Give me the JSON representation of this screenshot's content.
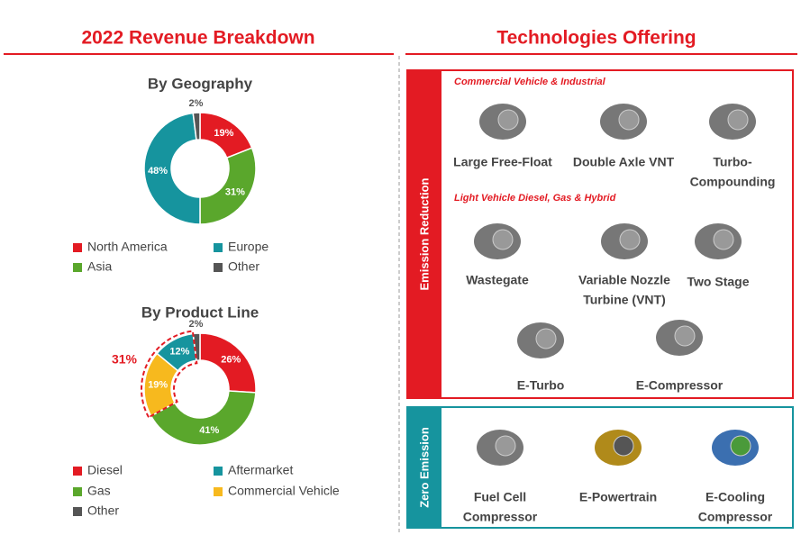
{
  "header": {
    "left_title": "2022 Revenue Breakdown",
    "right_title": "Technologies Offering"
  },
  "chart_data": [
    {
      "type": "donut",
      "title": "By Geography",
      "categories": [
        "North America",
        "Asia",
        "Europe",
        "Other"
      ],
      "values": [
        19,
        31,
        48,
        2
      ],
      "value_labels": [
        "19%",
        "31%",
        "48%",
        "2%"
      ],
      "colors": [
        "#e31b23",
        "#5aa72c",
        "#16949e",
        "#555555"
      ]
    },
    {
      "type": "donut",
      "title": "By Product Line",
      "categories": [
        "Diesel",
        "Gas",
        "Commercial Vehicle",
        "Aftermarket",
        "Other"
      ],
      "values": [
        26,
        41,
        19,
        12,
        2
      ],
      "value_labels": [
        "26%",
        "41%",
        "19%",
        "12%",
        "2%"
      ],
      "colors": [
        "#e31b23",
        "#5aa72c",
        "#f7b91e",
        "#16949e",
        "#555555"
      ],
      "annotation": "31%"
    }
  ],
  "technologies": {
    "groups": [
      {
        "label": "Emission Reduction",
        "sections": [
          {
            "label": "Commercial Vehicle & Industrial",
            "items": [
              {
                "lines": [
                  "Large Free-Float"
                ]
              },
              {
                "lines": [
                  "Double Axle VNT"
                ]
              },
              {
                "lines": [
                  "Turbo-",
                  "Compounding"
                ]
              }
            ]
          },
          {
            "label": "Light Vehicle Diesel, Gas & Hybrid",
            "items": [
              {
                "lines": [
                  "Wastegate"
                ]
              },
              {
                "lines": [
                  "Variable Nozzle",
                  "Turbine (VNT)"
                ]
              },
              {
                "lines": [
                  "Two Stage"
                ]
              },
              {
                "lines": [
                  "E-Turbo"
                ]
              },
              {
                "lines": [
                  "E-Compressor"
                ]
              }
            ]
          }
        ]
      },
      {
        "label": "Zero Emission",
        "sections": [
          {
            "items": [
              {
                "lines": [
                  "Fuel Cell",
                  "Compressor"
                ]
              },
              {
                "lines": [
                  "E-Powertrain"
                ]
              },
              {
                "lines": [
                  "E-Cooling",
                  "Compressor"
                ]
              }
            ]
          }
        ]
      }
    ]
  }
}
